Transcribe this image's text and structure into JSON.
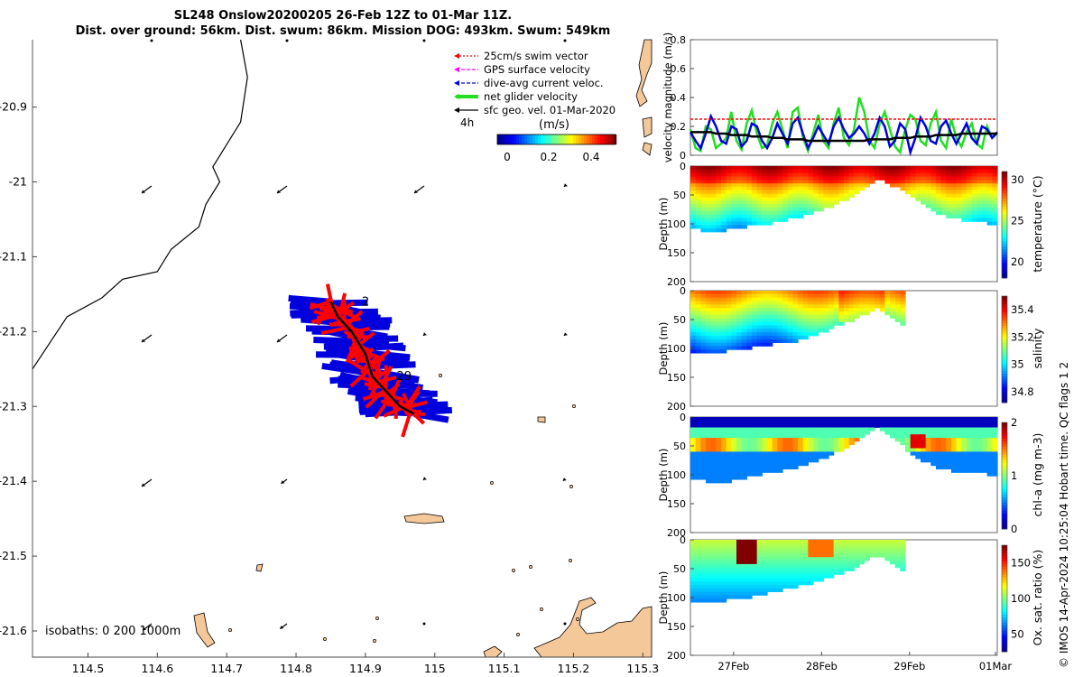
{
  "title_line1": "SL248 Onslow20200205 26-Feb 12Z to 01-Mar 11Z.",
  "title_line2": "Dist. over ground: 56km. Dist. swum: 86km. Mission DOG: 493km. Swum: 549km",
  "credit": "© IMOS 14-Apr-2024 10:25:04 Hobart time. QC flags 1  2",
  "colors": {
    "land": "#f5c89a",
    "swim": "#ff0000",
    "gps": "#ff00ff",
    "dive": "#0000dd",
    "net": "#22dd22",
    "geo": "#000000"
  },
  "map": {
    "legend": [
      {
        "label": "25cm/s swim vector",
        "color": "#ff0000",
        "style": "dotted"
      },
      {
        "label": "GPS surface velocity",
        "color": "#ff00ff",
        "style": "dashed"
      },
      {
        "label": "dive-avg current veloc.",
        "color": "#0000dd",
        "style": "dashed"
      },
      {
        "label": "net glider velocity",
        "color": "#22dd22",
        "style": "thick"
      },
      {
        "label": "sfc geo. vel. 01-Mar-2020",
        "color": "#000000",
        "style": "solid"
      }
    ],
    "interval_label": "4h",
    "colorbar_unit": "(m/s)",
    "colorbar_ticks": [
      "0",
      "0.2",
      "0.4"
    ],
    "isobaths_label": "isobaths: 0   200  1000m",
    "track_labels": [
      "2",
      "29"
    ]
  },
  "chart_data": [
    {
      "type": "map",
      "x": {
        "ticks": [
          114.5,
          114.6,
          114.7,
          114.8,
          114.9,
          115,
          115.1,
          115.2,
          115.3
        ],
        "tick_labels": [
          "114.5",
          "114.6",
          "114.7",
          "114.8",
          "114.9",
          "115",
          "115.1",
          "115.2",
          "115.3"
        ],
        "range": [
          114.42,
          115.31
        ]
      },
      "y": {
        "ticks": [
          -20.9,
          -21,
          -21.1,
          -21.2,
          -21.3,
          -21.4,
          -21.5,
          -21.6
        ],
        "tick_labels": [
          "-20.9",
          "-21",
          "-21.1",
          "-21.2",
          "-21.3",
          "-21.4",
          "-21.5",
          "-21.6"
        ],
        "range": [
          -21.635,
          -20.81
        ]
      },
      "coastline": [
        [
          114.72,
          -20.81
        ],
        [
          114.73,
          -20.86
        ],
        [
          114.72,
          -20.92
        ],
        [
          114.68,
          -20.98
        ],
        [
          114.69,
          -21.0
        ],
        [
          114.67,
          -21.03
        ],
        [
          114.66,
          -21.06
        ],
        [
          114.62,
          -21.09
        ],
        [
          114.6,
          -21.12
        ],
        [
          114.55,
          -21.13
        ],
        [
          114.52,
          -21.155
        ],
        [
          114.47,
          -21.18
        ],
        [
          114.42,
          -21.25
        ]
      ],
      "glider_track": [
        [
          114.85,
          -21.16
        ],
        [
          114.86,
          -21.18
        ],
        [
          114.88,
          -21.2
        ],
        [
          114.9,
          -21.23
        ],
        [
          114.91,
          -21.26
        ],
        [
          114.93,
          -21.28
        ],
        [
          114.95,
          -21.3
        ],
        [
          114.97,
          -21.31
        ]
      ],
      "track_labels": [
        {
          "text": "2",
          "lon": 114.895,
          "lat": -21.165
        },
        {
          "text": "29",
          "lon": 114.945,
          "lat": -21.265
        }
      ]
    },
    {
      "type": "line",
      "title": "",
      "ylabel": "velocity magnitude (m/s)",
      "ylim": [
        0,
        0.8
      ],
      "yticks": [
        "0",
        "0.2",
        "0.4",
        "0.6",
        "0.8"
      ],
      "x": [
        0,
        0.25,
        0.5,
        0.75,
        1,
        1.25,
        1.5,
        1.75,
        2,
        2.25,
        2.5,
        2.75,
        3,
        3.25,
        3.5,
        3.75,
        4,
        4.25,
        4.5,
        4.75,
        5,
        5.25,
        5.5,
        5.75,
        6,
        6.25,
        6.5,
        6.75,
        7,
        7.25,
        7.5,
        7.75,
        8,
        8.25,
        8.5,
        8.75,
        9,
        9.25,
        9.5,
        9.75,
        10,
        10.25,
        10.5,
        10.75,
        11,
        11.25,
        11.5,
        11.75,
        12,
        12.25,
        12.5,
        12.75,
        13,
        13.25,
        13.5,
        13.75,
        14,
        14.25,
        14.5,
        14.75,
        15
      ],
      "series": [
        {
          "values": [
            0.18,
            0.05,
            0.03,
            0.2,
            0.18,
            0.05,
            0.08,
            0.12,
            0.3,
            0.1,
            0.04,
            0.22,
            0.31,
            0.15,
            0.05,
            0.07,
            0.22,
            0.3,
            0.18,
            0.05,
            0.3,
            0.33,
            0.12,
            0.03,
            0.15,
            0.28,
            0.1,
            0.05,
            0.22,
            0.33,
            0.12,
            0.07,
            0.18,
            0.4,
            0.3,
            0.1,
            0.05,
            0.22,
            0.3,
            0.18,
            0.06,
            0.02,
            0.18,
            0.28,
            0.25,
            0.1,
            0.07,
            0.22,
            0.3,
            0.1,
            0.05,
            0.25,
            0.12,
            0.06,
            0.16,
            0.22,
            0.08,
            0.05,
            0.2,
            0.12,
            0.15
          ]
        },
        {
          "values": [
            0.16,
            0.1,
            0.05,
            0.15,
            0.27,
            0.2,
            0.1,
            0.08,
            0.2,
            0.18,
            0.06,
            0.1,
            0.22,
            0.2,
            0.1,
            0.05,
            0.12,
            0.22,
            0.15,
            0.08,
            0.22,
            0.26,
            0.15,
            0.05,
            0.12,
            0.2,
            0.14,
            0.08,
            0.2,
            0.26,
            0.18,
            0.12,
            0.15,
            0.2,
            0.15,
            0.08,
            0.15,
            0.26,
            0.2,
            0.06,
            0.1,
            0.22,
            0.18,
            0.02,
            0.12,
            0.26,
            0.2,
            0.1,
            0.08,
            0.2,
            0.24,
            0.15,
            0.08,
            0.15,
            0.22,
            0.12,
            0.08,
            0.2,
            0.18,
            0.12,
            0.16
          ]
        },
        {
          "values": [
            0.16,
            0.16,
            0.16,
            0.16,
            0.16,
            0.15,
            0.15,
            0.15,
            0.14,
            0.14,
            0.14,
            0.14,
            0.13,
            0.13,
            0.13,
            0.13,
            0.12,
            0.12,
            0.12,
            0.11,
            0.11,
            0.11,
            0.11,
            0.1,
            0.1,
            0.1,
            0.1,
            0.1,
            0.1,
            0.1,
            0.1,
            0.1,
            0.1,
            0.1,
            0.1,
            0.11,
            0.11,
            0.11,
            0.11,
            0.11,
            0.12,
            0.12,
            0.12,
            0.12,
            0.13,
            0.13,
            0.13,
            0.13,
            0.14,
            0.14,
            0.14,
            0.14,
            0.14,
            0.15,
            0.15,
            0.15,
            0.15,
            0.15,
            0.15,
            0.15,
            0.15
          ]
        },
        {
          "values": [
            0.25,
            0.25,
            0.25,
            0.25,
            0.25,
            0.25,
            0.25,
            0.25,
            0.25,
            0.25,
            0.25,
            0.25,
            0.25,
            0.25,
            0.25,
            0.25,
            0.25,
            0.25,
            0.25,
            0.25,
            0.25,
            0.25,
            0.25,
            0.25,
            0.25,
            0.25,
            0.25,
            0.25,
            0.25,
            0.25,
            0.25,
            0.25,
            0.25,
            0.25,
            0.25,
            0.25,
            0.25,
            0.25,
            0.25,
            0.25,
            0.25,
            0.25,
            0.25,
            0.25,
            0.25,
            0.25,
            0.25,
            0.25,
            0.25,
            0.25,
            0.25,
            0.25,
            0.25,
            0.25,
            0.25,
            0.25,
            0.25,
            0.25,
            0.25,
            0.25,
            0.25
          ]
        }
      ]
    },
    {
      "type": "heatmap",
      "ylabel": "Depth (m)",
      "colorbar_label": "temperature (°C)",
      "ylim": [
        200,
        0
      ],
      "yticks": [
        "0",
        "50",
        "100",
        "150",
        "200"
      ],
      "cticks": [
        "20",
        "25",
        "30"
      ],
      "crange": [
        18,
        31
      ]
    },
    {
      "type": "heatmap",
      "ylabel": "Depth (m)",
      "colorbar_label": "salinity",
      "ylim": [
        200,
        0
      ],
      "yticks": [
        "0",
        "50",
        "100",
        "150",
        "200"
      ],
      "cticks": [
        "34.8",
        "35",
        "35.2",
        "35.4"
      ],
      "crange": [
        34.72,
        35.5
      ]
    },
    {
      "type": "heatmap",
      "ylabel": "Depth (m)",
      "colorbar_label": "chl-a (mg m-3)",
      "ylim": [
        200,
        0
      ],
      "yticks": [
        "0",
        "50",
        "100",
        "150",
        "200"
      ],
      "cticks": [
        "0",
        "1",
        "2"
      ],
      "crange": [
        0,
        2
      ]
    },
    {
      "type": "heatmap",
      "ylabel": "Depth (m)",
      "colorbar_label": "Ox. sat. ratio (%)",
      "ylim": [
        200,
        0
      ],
      "yticks": [
        "0",
        "50",
        "100",
        "150",
        "200"
      ],
      "cticks": [
        "50",
        "100",
        "150"
      ],
      "crange": [
        25,
        175
      ],
      "xticks": [
        "27Feb",
        "28Feb",
        "29Feb",
        "01Mar"
      ]
    }
  ]
}
